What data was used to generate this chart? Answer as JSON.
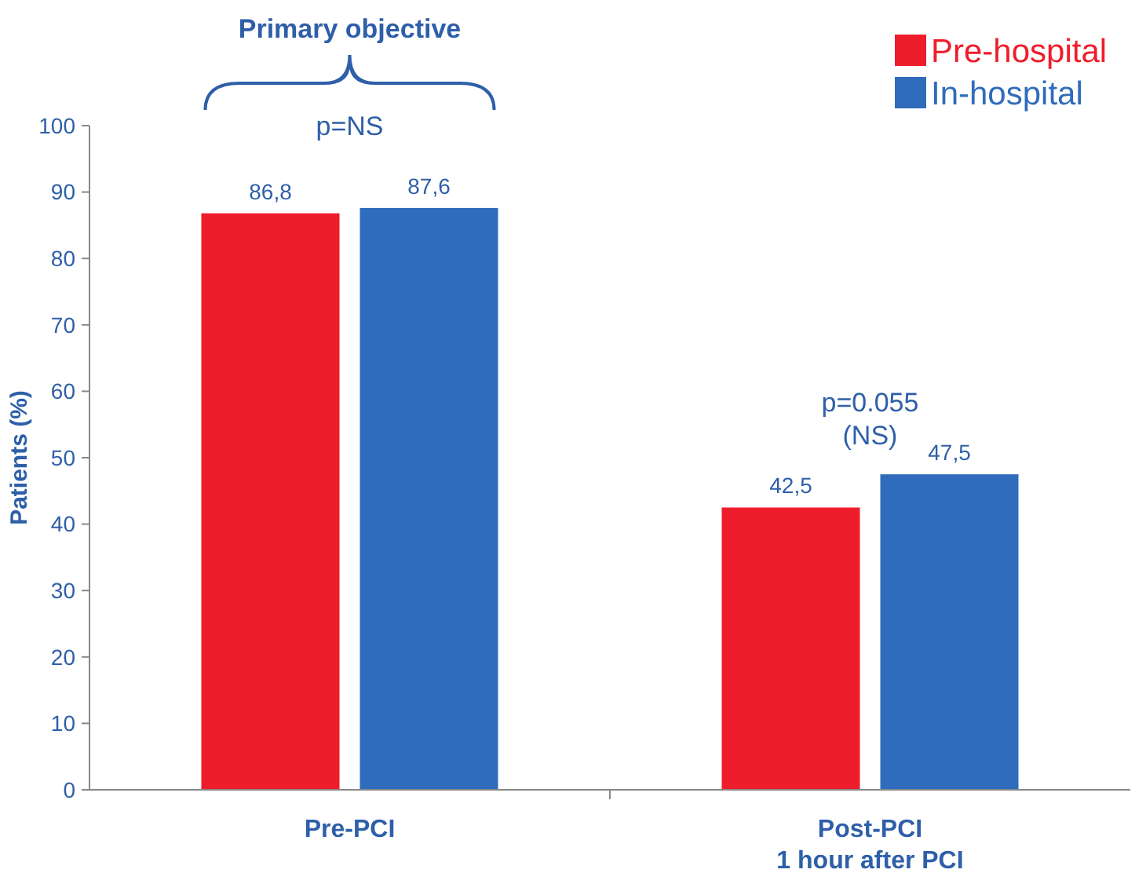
{
  "chart_data": {
    "type": "bar",
    "ylabel": "Patients (%)",
    "categories": [
      "Pre-PCI",
      "Post-PCI\n1 hour after PCI"
    ],
    "series": [
      {
        "name": "Pre-hospital",
        "color": "#ee1d2b",
        "values": [
          86.8,
          42.5
        ],
        "value_labels": [
          "86,8",
          "42,5"
        ]
      },
      {
        "name": "In-hospital",
        "color": "#2f6cbb",
        "values": [
          87.6,
          47.5
        ],
        "value_labels": [
          "87,6",
          "47,5"
        ]
      }
    ],
    "ylim": [
      0,
      100
    ],
    "yticks": [
      0,
      10,
      20,
      30,
      40,
      50,
      60,
      70,
      80,
      90,
      100
    ],
    "grid": false,
    "legend": "top right",
    "annotations": [
      "Primary objective",
      "p=NS",
      "p=0.055\n(NS)"
    ]
  }
}
